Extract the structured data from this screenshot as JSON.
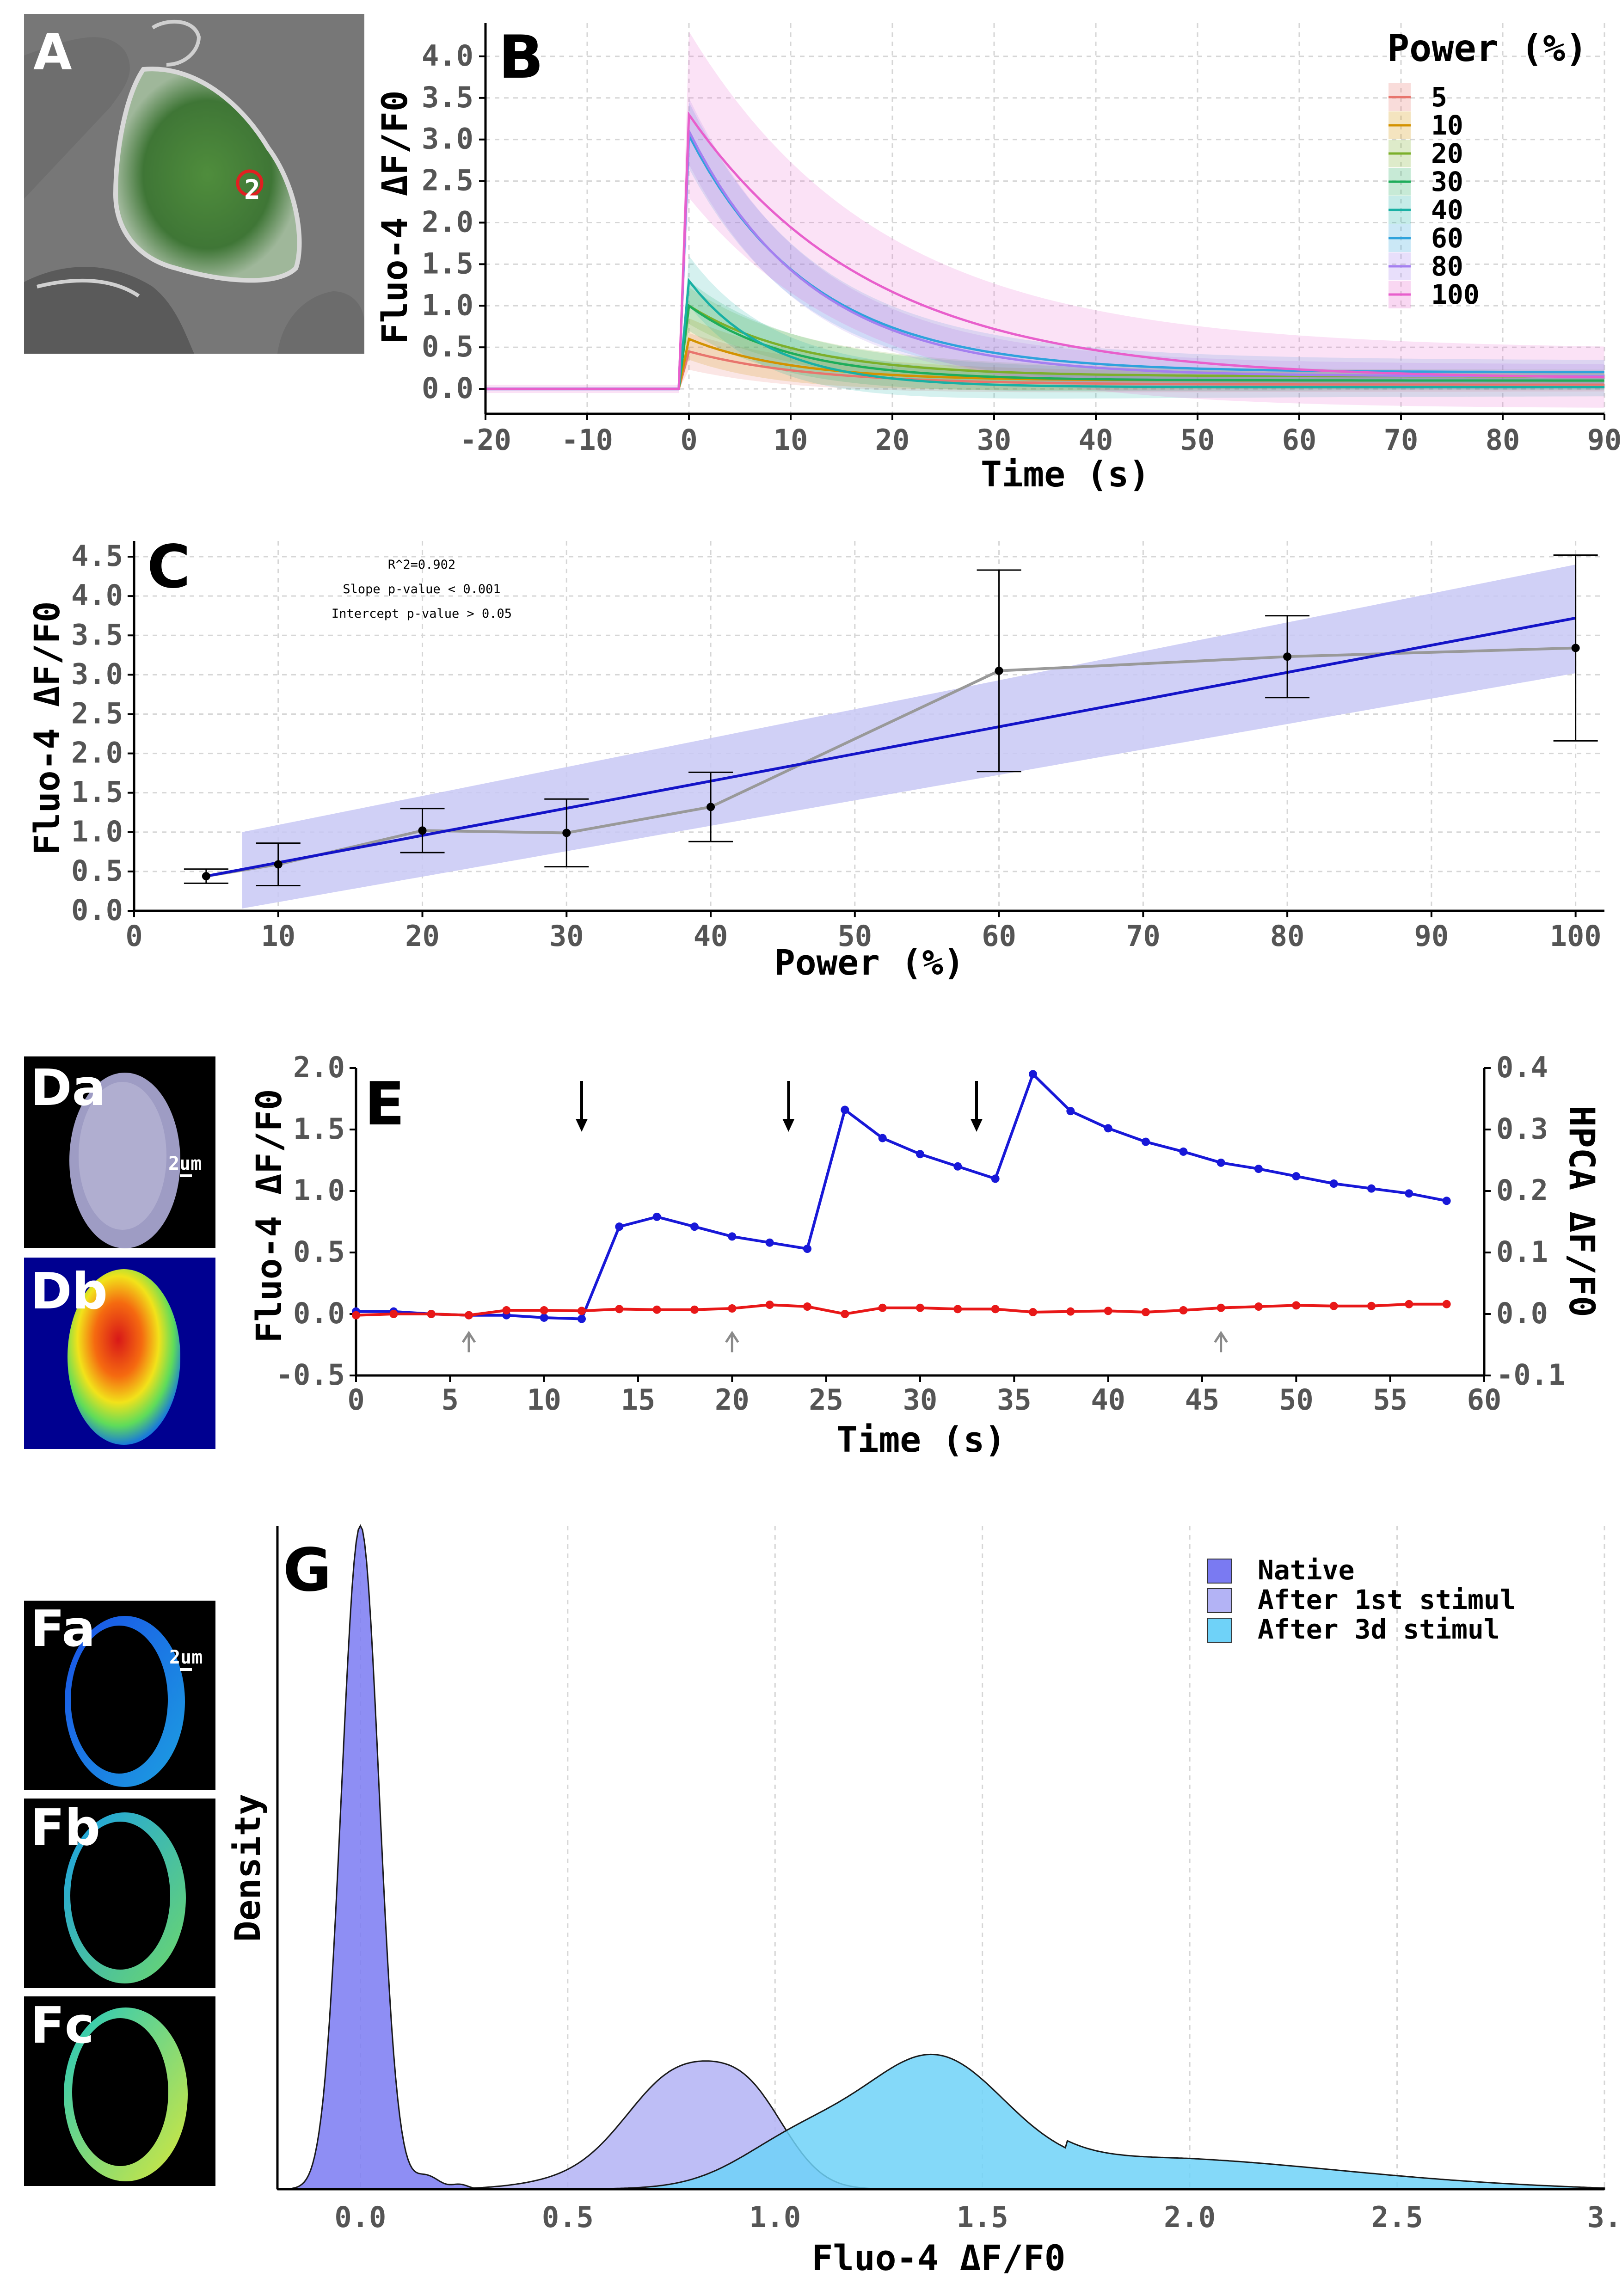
{
  "panel_labels": {
    "A": "A",
    "B": "B",
    "C": "C",
    "Da": "Da",
    "Db": "Db",
    "E": "E",
    "Fa": "Fa",
    "Fb": "Fb",
    "Fc": "Fc",
    "G": "G"
  },
  "image_labels": {
    "roi_number": "2",
    "scale_bar_d": "2um",
    "scale_bar_f": "2um"
  },
  "chart_data": [
    {
      "id": "B",
      "type": "line",
      "xlabel": "Time (s)",
      "ylabel": "Fluo-4 ΔF/F0",
      "xlim": [
        -20,
        90
      ],
      "ylim": [
        -0.3,
        4.4
      ],
      "xticks": [
        -20,
        -10,
        0,
        10,
        20,
        30,
        40,
        50,
        60,
        70,
        80,
        90
      ],
      "xtick_labels": [
        "-20",
        "-10",
        "0",
        "10",
        "20",
        "30",
        "40",
        "50",
        "60",
        "70",
        "80",
        "90"
      ],
      "yticks": [
        0,
        0.5,
        1.0,
        1.5,
        2.0,
        2.5,
        3.0,
        3.5,
        4.0
      ],
      "ytick_labels": [
        "0.0",
        "0.5",
        "1.0",
        "1.5",
        "2.0",
        "2.5",
        "3.0",
        "3.5",
        "4.0"
      ],
      "grid": true,
      "legend": {
        "title": "Power (%)",
        "position": "top-right"
      },
      "series": [
        {
          "name": "5",
          "color": "#e8756d",
          "peak": 0.45,
          "tau": 12,
          "tail": 0.05,
          "band": 0.22
        },
        {
          "name": "10",
          "color": "#d39200",
          "peak": 0.6,
          "tau": 10,
          "tail": 0.1,
          "band": 0.25
        },
        {
          "name": "20",
          "color": "#7caf2a",
          "peak": 1.0,
          "tau": 11,
          "tail": 0.15,
          "band": 0.22
        },
        {
          "name": "30",
          "color": "#1ead5a",
          "peak": 1.0,
          "tau": 10,
          "tail": 0.1,
          "band": 0.3
        },
        {
          "name": "40",
          "color": "#18b0a4",
          "peak": 1.3,
          "tau": 8,
          "tail": 0.02,
          "band": 0.3
        },
        {
          "name": "60",
          "color": "#2fa2dc",
          "peak": 3.05,
          "tau": 12,
          "tail": 0.2,
          "band": 0.4
        },
        {
          "name": "80",
          "color": "#a47ff0",
          "peak": 3.1,
          "tau": 12,
          "tail": 0.15,
          "band": 0.4
        },
        {
          "name": "100",
          "color": "#e85fcc",
          "peak": 3.3,
          "tau": 18,
          "tail": 0.12,
          "band": 1.0
        }
      ]
    },
    {
      "id": "C",
      "type": "line",
      "xlabel": "Power (%)",
      "ylabel": "Fluo-4 ΔF/F0",
      "xlim": [
        0,
        102
      ],
      "ylim": [
        0,
        4.7
      ],
      "xticks": [
        0,
        10,
        20,
        30,
        40,
        50,
        60,
        70,
        80,
        90,
        100
      ],
      "xtick_labels": [
        "0",
        "10",
        "20",
        "30",
        "40",
        "50",
        "60",
        "70",
        "80",
        "90",
        "100"
      ],
      "yticks": [
        0,
        0.5,
        1.0,
        1.5,
        2.0,
        2.5,
        3.0,
        3.5,
        4.0,
        4.5
      ],
      "ytick_labels": [
        "0.0",
        "0.5",
        "1.0",
        "1.5",
        "2.0",
        "2.5",
        "3.0",
        "3.5",
        "4.0",
        "4.5"
      ],
      "grid": true,
      "annotations": [
        "R^2=0.902",
        "Slope p-value < 0.001",
        "Intercept p-value > 0.05"
      ],
      "points": [
        {
          "x": 5,
          "y": 0.44,
          "err": 0.09
        },
        {
          "x": 10,
          "y": 0.59,
          "err": 0.27
        },
        {
          "x": 20,
          "y": 1.02,
          "err": 0.28
        },
        {
          "x": 30,
          "y": 0.99,
          "err": 0.43
        },
        {
          "x": 40,
          "y": 1.32,
          "err": 0.44
        },
        {
          "x": 60,
          "y": 3.05,
          "err": 1.28
        },
        {
          "x": 80,
          "y": 3.23,
          "err": 0.52
        },
        {
          "x": 100,
          "y": 3.34,
          "err": 1.18
        }
      ],
      "fit": {
        "x0": 5,
        "x1": 100,
        "y0": 0.44,
        "y1": 3.72,
        "ci_x": [
          7.5,
          100
        ],
        "ci_lo": [
          0.03,
          3.02
        ],
        "ci_hi": [
          1.0,
          4.4
        ]
      },
      "colors": {
        "fit": "#1414c8",
        "band": "#c8c8f5",
        "points": "#999999"
      }
    },
    {
      "id": "E",
      "type": "line",
      "xlabel": "Time (s)",
      "ylabel": "Fluo-4 ΔF/F0",
      "y2label": "HPCA ΔF/F0",
      "xlim": [
        0,
        60
      ],
      "ylim": [
        -0.5,
        2.0
      ],
      "y2lim": [
        -0.1,
        0.4
      ],
      "xticks": [
        0,
        5,
        10,
        15,
        20,
        25,
        30,
        35,
        40,
        45,
        50,
        55,
        60
      ],
      "xtick_labels": [
        "0",
        "5",
        "10",
        "15",
        "20",
        "25",
        "30",
        "35",
        "40",
        "45",
        "50",
        "55",
        "60"
      ],
      "yticks": [
        -0.5,
        0,
        0.5,
        1.0,
        1.5,
        2.0
      ],
      "ytick_labels": [
        "-0.5",
        "0.0",
        "0.5",
        "1.0",
        "1.5",
        "2.0"
      ],
      "y2ticks": [
        -0.1,
        0,
        0.1,
        0.2,
        0.3,
        0.4
      ],
      "y2tick_labels": [
        "-0.1",
        "0.0",
        "0.1",
        "0.2",
        "0.3",
        "0.4"
      ],
      "x": [
        0,
        2,
        4,
        6,
        8,
        10,
        12,
        14,
        16,
        18,
        20,
        22,
        24,
        26,
        28,
        30,
        32,
        34,
        36,
        38,
        40,
        42,
        44,
        46,
        48,
        50,
        52,
        54,
        56,
        58
      ],
      "series": [
        {
          "name": "Fluo-4",
          "axis": "left",
          "color": "#1818d8",
          "values": [
            0.02,
            0.02,
            0.0,
            -0.01,
            -0.01,
            -0.03,
            -0.04,
            0.71,
            0.79,
            0.71,
            0.63,
            0.58,
            0.53,
            1.66,
            1.43,
            1.3,
            1.2,
            1.1,
            1.95,
            1.65,
            1.51,
            1.4,
            1.32,
            1.23,
            1.18,
            1.12,
            1.06,
            1.02,
            0.98,
            0.92
          ]
        },
        {
          "name": "HPCA",
          "axis": "right",
          "color": "#e81818",
          "values": [
            -0.002,
            0.0,
            0.0,
            -0.002,
            0.006,
            0.006,
            0.005,
            0.008,
            0.007,
            0.007,
            0.009,
            0.015,
            0.012,
            0.0,
            0.01,
            0.01,
            0.008,
            0.008,
            0.003,
            0.004,
            0.005,
            0.003,
            0.006,
            0.01,
            0.012,
            0.014,
            0.013,
            0.013,
            0.016,
            0.016
          ]
        }
      ],
      "stim_arrows_down": [
        12,
        23,
        33
      ],
      "stim_arrows_up": [
        6,
        20,
        46
      ]
    },
    {
      "id": "G",
      "type": "area",
      "xlabel": "Fluo-4 ΔF/F0",
      "ylabel": "Density",
      "xlim": [
        -0.2,
        3.0
      ],
      "xticks": [
        0,
        0.5,
        1.0,
        1.5,
        2.0,
        2.5,
        3.0
      ],
      "xtick_labels": [
        "0.0",
        "0.5",
        "1.0",
        "1.5",
        "2.0",
        "2.5",
        "3."
      ],
      "grid": true,
      "legend": {
        "position": "top-right"
      },
      "series": [
        {
          "name": "Native",
          "color": "#7a7af2",
          "peak_x": 0.0,
          "peak": 1.0
        },
        {
          "name": "After 1st stimul",
          "color": "#b3b3f5",
          "peak_x": 0.78,
          "peak": 0.235
        },
        {
          "name": "After 3d stimul",
          "color": "#6fd2f8",
          "peak_x": 1.38,
          "peak": 0.185
        }
      ]
    }
  ]
}
